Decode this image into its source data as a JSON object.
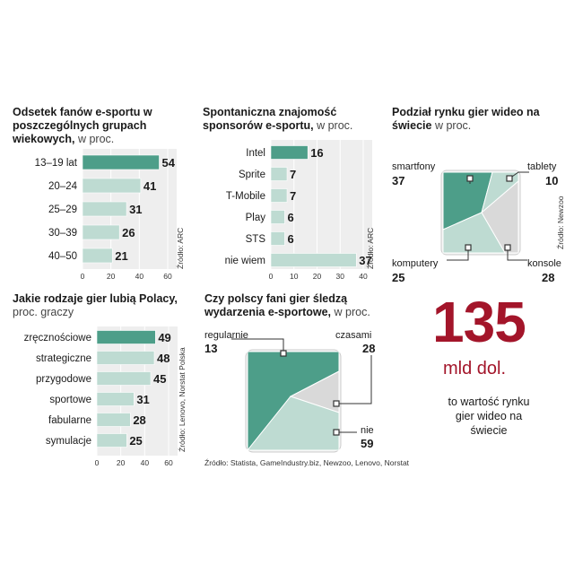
{
  "colors": {
    "accent": "#4d9e89",
    "light": "#bedbd2",
    "gray": "#d9d9d9",
    "panel": "#eeeeee",
    "highlight": "#a3152a"
  },
  "chart_data": [
    {
      "id": "age",
      "type": "bar",
      "title_bold": "Odsetek fanów e-sportu w poszczególnych grupach wiekowych,",
      "title_light": "w proc.",
      "categories": [
        "13–19 lat",
        "20–24",
        "25–29",
        "30–39",
        "40–50"
      ],
      "values": [
        54,
        41,
        31,
        26,
        21
      ],
      "xlim": [
        0,
        60
      ],
      "ticks": [
        "0",
        "20",
        "40",
        "60"
      ],
      "source": "Źródło: ARC"
    },
    {
      "id": "sponsors",
      "type": "bar",
      "title_bold": "Spontaniczna znajomość sponsorów e-sportu,",
      "title_light": "w proc.",
      "categories": [
        "Intel",
        "Sprite",
        "T-Mobile",
        "Play",
        "STS",
        "nie wiem"
      ],
      "values": [
        16,
        7,
        7,
        6,
        6,
        37
      ],
      "xlim": [
        0,
        40
      ],
      "ticks": [
        "0",
        "10",
        "20",
        "30",
        "40"
      ],
      "source": "Źródło: ARC"
    },
    {
      "id": "market",
      "type": "pie",
      "title_bold": "Podział rynku gier wideo na świecie",
      "title_light": "w proc.",
      "slices": [
        {
          "label": "smartfony",
          "value": 37
        },
        {
          "label": "tablety",
          "value": 10
        },
        {
          "label": "konsole",
          "value": 28
        },
        {
          "label": "komputery",
          "value": 25
        }
      ],
      "source": "Źródło: Newzoo"
    },
    {
      "id": "genres",
      "type": "bar",
      "title_bold": "Jakie rodzaje gier lubią Polacy,",
      "title_light": "proc. graczy",
      "categories": [
        "zręcznościowe",
        "strategiczne",
        "przygodowe",
        "sportowe",
        "fabularne",
        "symulacje"
      ],
      "values": [
        49,
        48,
        45,
        31,
        28,
        25
      ],
      "xlim": [
        0,
        60
      ],
      "ticks": [
        "0",
        "20",
        "40",
        "60"
      ],
      "source": "Źródło: Lenovo, Norstat Polska"
    },
    {
      "id": "follow",
      "type": "pie",
      "title_bold": "Czy polscy fani gier śledzą wydarzenia e-sportowe,",
      "title_light": "w proc.",
      "slices": [
        {
          "label": "regularnie",
          "value": 13
        },
        {
          "label": "czasami",
          "value": 28
        },
        {
          "label": "nie",
          "value": 59
        }
      ],
      "source": "Źródło: Statista, GameIndustry.biz, Newzoo, Lenovo, Norstat"
    }
  ],
  "highlight": {
    "number": "135",
    "unit": "mld dol.",
    "note": [
      "to wartość rynku",
      "gier wideo na",
      "świecie"
    ]
  }
}
